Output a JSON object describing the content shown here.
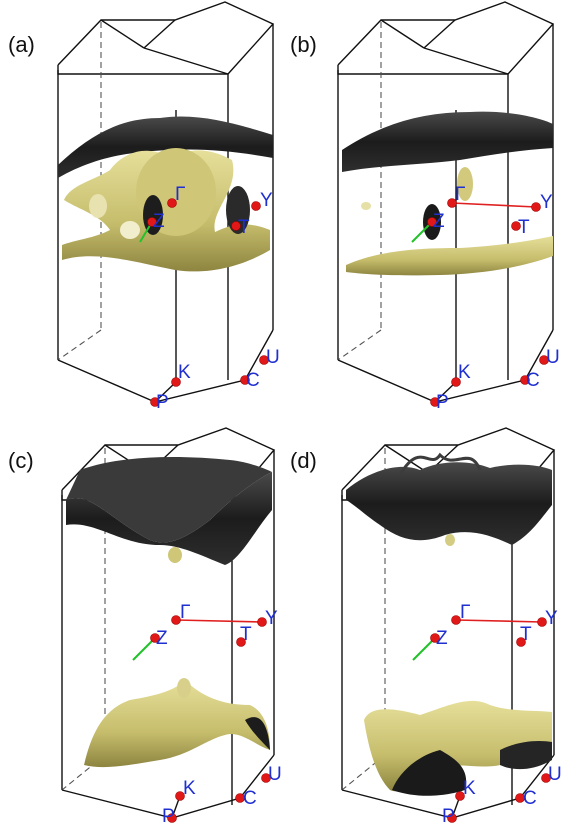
{
  "colors": {
    "electron_surface": "#c9c27a",
    "hole_surface": "#2a2a2a",
    "kpoint_label": "#1f2fd0",
    "kpoint_dot": "#e01818",
    "gamma_path": "#e02020",
    "z_path": "#22c22a"
  },
  "panels": [
    {
      "label": "(a)",
      "kpoints": {
        "Z": "Z",
        "Gamma": "Γ",
        "T": "T",
        "Y": "Y",
        "K": "K",
        "P": "P",
        "C": "C",
        "U": "U"
      }
    },
    {
      "label": "(b)",
      "kpoints": {
        "Z": "Z",
        "Gamma": "Γ",
        "T": "T",
        "Y": "Y",
        "K": "K",
        "P": "P",
        "C": "C",
        "U": "U"
      }
    },
    {
      "label": "(c)",
      "kpoints": {
        "Z": "Z",
        "Gamma": "Γ",
        "T": "T",
        "Y": "Y",
        "K": "K",
        "P": "P",
        "C": "C",
        "U": "U"
      }
    },
    {
      "label": "(d)",
      "kpoints": {
        "Z": "Z",
        "Gamma": "Γ",
        "T": "T",
        "Y": "Y",
        "K": "K",
        "P": "P",
        "C": "C",
        "U": "U"
      }
    }
  ]
}
